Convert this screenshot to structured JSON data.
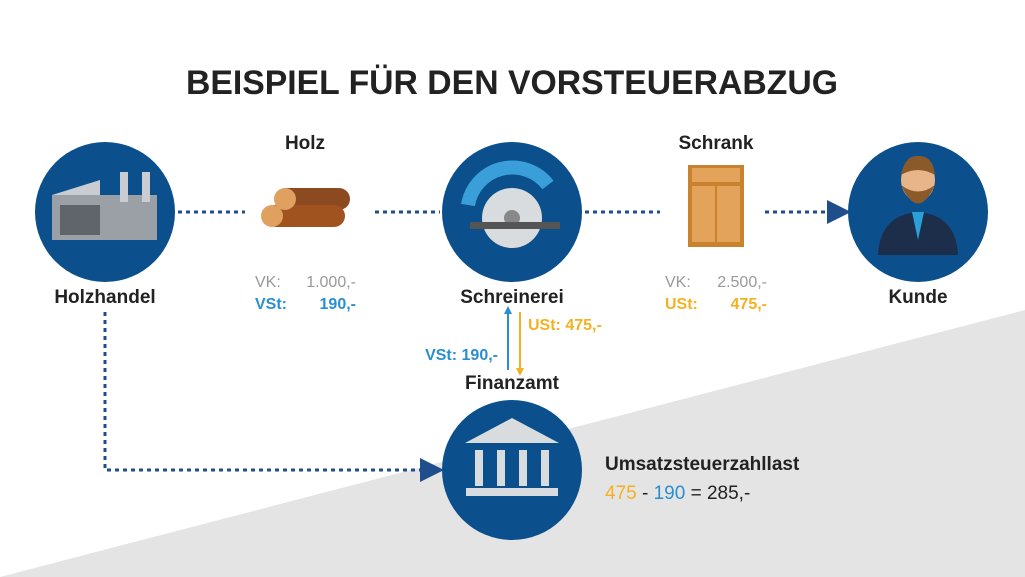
{
  "header": {
    "title": "BEISPIEL FÜR DEN VORSTEUERABZUG"
  },
  "nodes": [
    {
      "label": "Holzhandel"
    },
    {
      "label": "Schreinerei"
    },
    {
      "label": "Kunde"
    },
    {
      "label": "Finanzamt"
    }
  ],
  "goods": [
    {
      "label": "Holz",
      "rows": [
        [
          "VK:",
          "1.000,-"
        ],
        [
          "VSt:",
          "190,-"
        ]
      ]
    },
    {
      "label": "Schrank",
      "rows": [
        [
          "VK:",
          "2.500,-"
        ],
        [
          "USt:",
          "475,-"
        ]
      ]
    }
  ],
  "flows": {
    "up": "VSt: 190,-",
    "down": "USt: 475,-"
  },
  "result": {
    "title": "Umsatzsteuerzahllast",
    "parts": [
      "475",
      "-",
      "190",
      "=",
      "285,-"
    ]
  }
}
